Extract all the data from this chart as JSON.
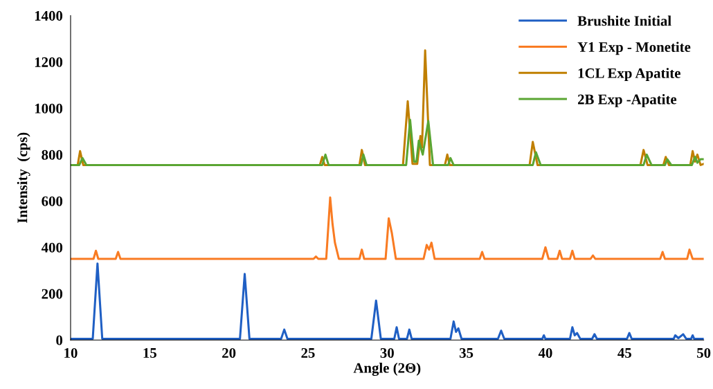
{
  "chart_data": {
    "type": "line",
    "xlabel": "Angle (2Θ)",
    "ylabel": "Intensity  (cps)",
    "xlim": [
      10,
      50
    ],
    "xticks": [
      10,
      15,
      20,
      25,
      30,
      35,
      40,
      45,
      50
    ],
    "ylim": [
      0,
      1400
    ],
    "yticks": [
      0,
      200,
      400,
      600,
      800,
      1000,
      1200,
      1400
    ],
    "grid": false,
    "legend": "top right",
    "marker": "none",
    "line_style": "solid",
    "series": [
      {
        "name": "Brushite Initial",
        "color": "#1f5fc4",
        "x": [
          10,
          11.4,
          11.7,
          12.0,
          20.7,
          21.0,
          21.3,
          23.3,
          23.5,
          23.7,
          29.0,
          29.3,
          29.6,
          30.45,
          30.6,
          30.75,
          31.25,
          31.4,
          31.55,
          34.0,
          34.2,
          34.35,
          34.5,
          34.7,
          37.0,
          37.2,
          37.4,
          39.8,
          39.9,
          40.0,
          41.55,
          41.7,
          41.85,
          42.0,
          42.2,
          42.95,
          43.1,
          43.25,
          45.15,
          45.3,
          45.45,
          48.1,
          48.2,
          48.4,
          48.7,
          48.9,
          49.2,
          49.3,
          49.4,
          50
        ],
        "values": [
          5,
          5,
          330,
          5,
          5,
          285,
          5,
          5,
          45,
          5,
          5,
          170,
          5,
          5,
          55,
          5,
          5,
          45,
          5,
          5,
          80,
          35,
          50,
          5,
          5,
          40,
          5,
          5,
          20,
          5,
          5,
          55,
          20,
          30,
          5,
          5,
          25,
          5,
          5,
          30,
          5,
          5,
          20,
          8,
          25,
          5,
          5,
          20,
          5,
          5
        ]
      },
      {
        "name": "Y1 Exp - Monetite",
        "color": "#f97b22",
        "x": [
          10,
          11.45,
          11.6,
          11.75,
          12.85,
          13.0,
          13.15,
          25.35,
          25.5,
          25.65,
          26.15,
          26.4,
          26.55,
          26.7,
          26.95,
          28.25,
          28.4,
          28.55,
          29.9,
          30.1,
          30.3,
          30.55,
          32.3,
          32.5,
          32.65,
          32.8,
          33.0,
          35.85,
          36.0,
          36.15,
          39.8,
          40.0,
          40.2,
          40.75,
          40.9,
          41.05,
          41.55,
          41.7,
          41.85,
          42.85,
          43.0,
          43.15,
          47.25,
          47.4,
          47.55,
          48.95,
          49.1,
          49.3,
          50
        ],
        "values": [
          350,
          350,
          385,
          350,
          350,
          380,
          350,
          350,
          360,
          350,
          350,
          615,
          500,
          420,
          350,
          350,
          390,
          350,
          350,
          525,
          460,
          350,
          350,
          410,
          390,
          420,
          350,
          350,
          380,
          350,
          350,
          400,
          350,
          350,
          385,
          350,
          350,
          385,
          350,
          350,
          365,
          350,
          350,
          380,
          350,
          350,
          390,
          350,
          350
        ]
      },
      {
        "name": "1CL Exp Apatite",
        "color": "#c07f00",
        "x": [
          10,
          10.45,
          10.6,
          10.8,
          25.75,
          25.9,
          26.05,
          28.25,
          28.4,
          28.6,
          31.0,
          31.3,
          31.6,
          31.9,
          32.1,
          32.2,
          32.4,
          32.7,
          33.65,
          33.8,
          33.95,
          39.0,
          39.2,
          39.5,
          46.0,
          46.2,
          46.45,
          47.45,
          47.6,
          47.8,
          49.15,
          49.3,
          49.45,
          49.6,
          49.8,
          50
        ],
        "values": [
          755,
          755,
          815,
          755,
          755,
          790,
          755,
          755,
          820,
          755,
          755,
          1030,
          760,
          760,
          880,
          830,
          1250,
          755,
          755,
          800,
          755,
          755,
          855,
          755,
          755,
          820,
          755,
          755,
          790,
          755,
          755,
          815,
          770,
          800,
          755,
          760
        ]
      },
      {
        "name": "2B Exp -Apatite",
        "color": "#5aa532",
        "x": [
          10,
          10.55,
          10.75,
          11.0,
          25.9,
          26.1,
          26.3,
          28.35,
          28.5,
          28.7,
          31.2,
          31.45,
          31.7,
          31.85,
          32.0,
          32.25,
          32.6,
          32.9,
          33.85,
          34.0,
          34.2,
          39.2,
          39.4,
          39.7,
          46.2,
          46.4,
          46.7,
          47.55,
          47.7,
          47.95,
          49.25,
          49.45,
          49.6,
          49.8,
          50
        ],
        "values": [
          755,
          755,
          785,
          755,
          755,
          800,
          755,
          755,
          800,
          755,
          755,
          950,
          770,
          770,
          860,
          800,
          945,
          755,
          755,
          785,
          755,
          755,
          810,
          755,
          755,
          800,
          755,
          755,
          780,
          755,
          755,
          790,
          765,
          780,
          780
        ]
      }
    ]
  }
}
